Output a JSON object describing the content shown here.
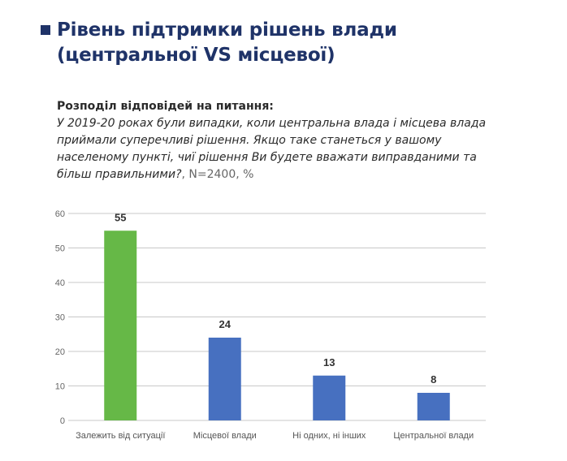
{
  "header": {
    "title_line1": "Рівень підтримки рішень влади",
    "title_line2": "(центральної VS місцевої)",
    "title_color": "#1f3368"
  },
  "question": {
    "label": "Розподіл відповідей на питання:",
    "text": "У 2019-20 роках були випадки, коли центральна влада і місцева влада приймали суперечливі рішення. Якщо таке станеться у вашому населеному пункті, чиї рішення Ви будете вважати виправданими та більш правильними?",
    "sample": ", N=2400, %"
  },
  "chart_data": {
    "type": "bar",
    "categories": [
      "Залежить від ситуації",
      "Місцевої влади",
      "Ні одних, ні  інших",
      "Центральної влади"
    ],
    "values": [
      55,
      24,
      13,
      8
    ],
    "colors": [
      "#66b847",
      "#4770c0",
      "#4770c0",
      "#4770c0"
    ],
    "ylim": [
      0,
      60
    ],
    "yticks": [
      0,
      10,
      20,
      30,
      40,
      50,
      60
    ],
    "grid": true,
    "data_labels": true
  }
}
